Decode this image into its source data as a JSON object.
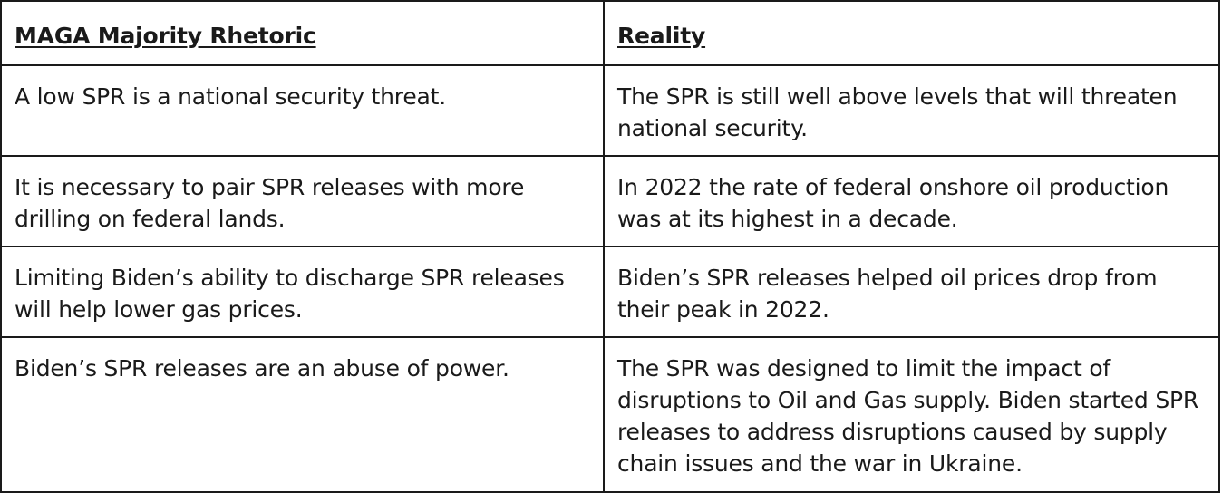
{
  "table": {
    "headers": [
      "MAGA Majority Rhetoric",
      "Reality"
    ],
    "rows": [
      {
        "rhetoric": "A low SPR is a national security threat.",
        "reality": "The SPR is still well above levels that will threaten national security."
      },
      {
        "rhetoric": "It is necessary to pair SPR releases with more drilling on federal lands.",
        "reality": "In 2022 the rate of federal onshore oil production was at its highest in a decade."
      },
      {
        "rhetoric": "Limiting Biden’s ability to discharge SPR releases will help lower gas prices.",
        "reality": "Biden’s SPR releases helped oil prices drop from their peak in 2022."
      },
      {
        "rhetoric": "Biden’s SPR releases are an abuse of power.",
        "reality": "The SPR was designed to limit the impact of disruptions to Oil and Gas supply. Biden started SPR releases to address disruptions caused by supply chain issues and the war in Ukraine."
      }
    ]
  }
}
